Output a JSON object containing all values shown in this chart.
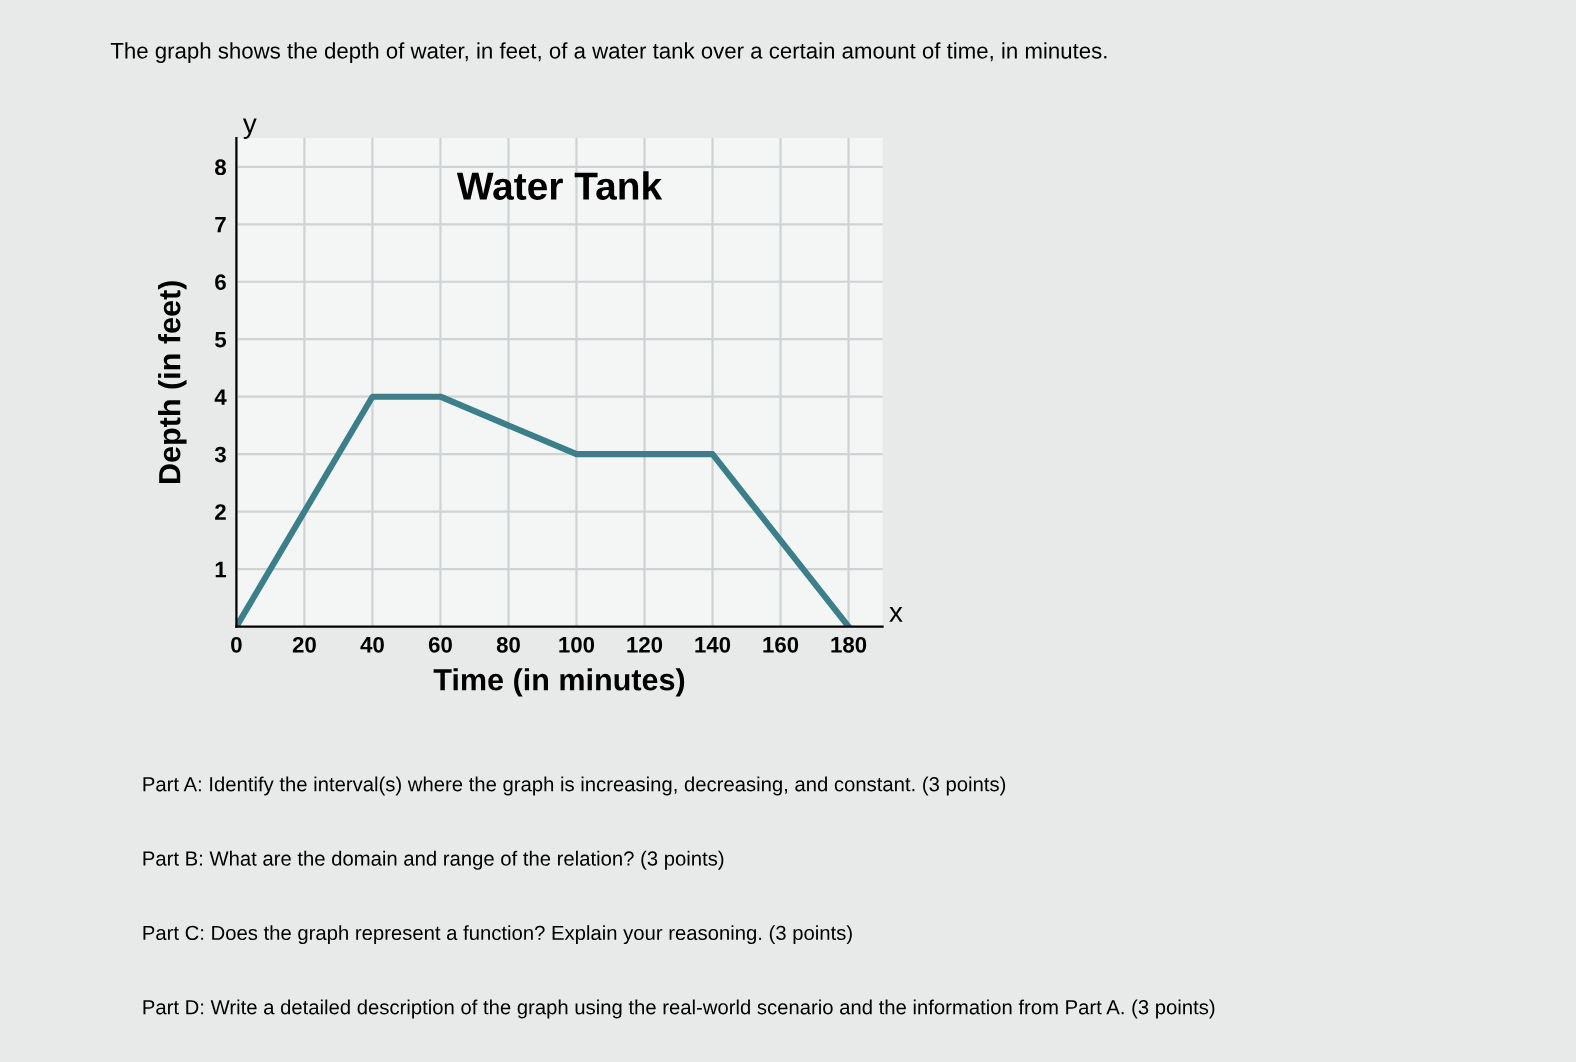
{
  "chart_data": {
    "type": "line",
    "title": "Water Tank",
    "xlabel": "Time (in minutes)",
    "ylabel": "Depth (in feet)",
    "x": [
      0,
      40,
      60,
      100,
      140,
      180
    ],
    "series": [
      {
        "color": "#3a7f8a",
        "values": [
          0,
          4,
          4,
          3,
          3,
          0
        ]
      }
    ],
    "xlim": [
      0,
      190
    ],
    "xticks": [
      0,
      20,
      40,
      60,
      80,
      100,
      120,
      140,
      160,
      180
    ],
    "ylim": [
      0,
      8.5
    ],
    "yticks": [
      1,
      2,
      3,
      4,
      5,
      6,
      7,
      8
    ],
    "grid": true,
    "marker": "none",
    "line_style": "solid",
    "annotations": [
      "The graph shows the depth of water, in feet, of a water tank over a certain amount of time, in minutes.",
      "Part A: Identify the interval(s) where the graph is increasing, decreasing, and constant. (3 points)",
      "Part B: What are the domain and range of the relation? (3 points)",
      "Part C: Does the graph represent a function? Explain your reasoning. (3 points)",
      "Part D: Write a detailed description of the graph using the real-world scenario and the information from Part A. (3 points)",
      "x",
      "y"
    ]
  }
}
